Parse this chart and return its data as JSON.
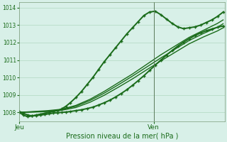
{
  "xlabel": "Pression niveau de la mer( hPa )",
  "bg_color": "#d8f0e8",
  "grid_color": "#b0d8c0",
  "line_color": "#1a6b1a",
  "ylim": [
    1007.5,
    1014.3
  ],
  "yticks": [
    1008,
    1009,
    1010,
    1011,
    1012,
    1013,
    1014
  ],
  "xlim": [
    0.0,
    1.45
  ],
  "xtick_positions": [
    0.0,
    0.95
  ],
  "xtick_labels": [
    "Jeu",
    "Ven"
  ],
  "ven_line_x": 0.95,
  "lines": [
    {
      "x": [
        0.0,
        0.03,
        0.06,
        0.09,
        0.12,
        0.15,
        0.18,
        0.21,
        0.24,
        0.27,
        0.3,
        0.33,
        0.36,
        0.4,
        0.44,
        0.48,
        0.52,
        0.56,
        0.6,
        0.64,
        0.68,
        0.72,
        0.76,
        0.8,
        0.84,
        0.88,
        0.92,
        0.96,
        1.0,
        1.04,
        1.08,
        1.12,
        1.16,
        1.2,
        1.24,
        1.28,
        1.32,
        1.36,
        1.4,
        1.44
      ],
      "y": [
        1008.0,
        1007.85,
        1007.75,
        1007.8,
        1007.85,
        1007.9,
        1007.95,
        1008.0,
        1008.05,
        1008.1,
        1008.2,
        1008.35,
        1008.55,
        1008.85,
        1009.2,
        1009.6,
        1010.0,
        1010.45,
        1010.9,
        1011.3,
        1011.7,
        1012.1,
        1012.5,
        1012.85,
        1013.2,
        1013.55,
        1013.75,
        1013.8,
        1013.6,
        1013.35,
        1013.1,
        1012.9,
        1012.8,
        1012.85,
        1012.9,
        1013.0,
        1013.15,
        1013.3,
        1013.5,
        1013.75
      ],
      "marker": true,
      "lw": 1.4
    },
    {
      "x": [
        0.0,
        0.1,
        0.2,
        0.3,
        0.4,
        0.5,
        0.6,
        0.7,
        0.8,
        0.9,
        1.0,
        1.1,
        1.2,
        1.3,
        1.4,
        1.44
      ],
      "y": [
        1008.0,
        1008.05,
        1008.1,
        1008.18,
        1008.4,
        1008.75,
        1009.2,
        1009.7,
        1010.2,
        1010.75,
        1011.3,
        1011.8,
        1012.3,
        1012.7,
        1013.1,
        1013.3
      ],
      "marker": false,
      "lw": 1.0
    },
    {
      "x": [
        0.0,
        0.1,
        0.2,
        0.3,
        0.4,
        0.5,
        0.6,
        0.7,
        0.8,
        0.9,
        1.0,
        1.1,
        1.2,
        1.3,
        1.4,
        1.44
      ],
      "y": [
        1008.0,
        1008.03,
        1008.07,
        1008.15,
        1008.35,
        1008.68,
        1009.1,
        1009.58,
        1010.08,
        1010.6,
        1011.12,
        1011.62,
        1012.12,
        1012.52,
        1012.88,
        1013.08
      ],
      "marker": false,
      "lw": 1.0
    },
    {
      "x": [
        0.0,
        0.1,
        0.2,
        0.3,
        0.4,
        0.5,
        0.6,
        0.7,
        0.8,
        0.9,
        1.0,
        1.1,
        1.2,
        1.3,
        1.4,
        1.44
      ],
      "y": [
        1008.0,
        1008.02,
        1008.05,
        1008.12,
        1008.28,
        1008.58,
        1008.98,
        1009.44,
        1009.92,
        1010.44,
        1010.95,
        1011.44,
        1011.93,
        1012.32,
        1012.67,
        1012.85
      ],
      "marker": false,
      "lw": 1.0
    },
    {
      "x": [
        0.0,
        0.03,
        0.06,
        0.09,
        0.12,
        0.15,
        0.18,
        0.21,
        0.24,
        0.27,
        0.3,
        0.33,
        0.36,
        0.4,
        0.44,
        0.48,
        0.52,
        0.56,
        0.6,
        0.64,
        0.68,
        0.72,
        0.76,
        0.8,
        0.84,
        0.88,
        0.92,
        0.96,
        1.0,
        1.04,
        1.08,
        1.12,
        1.16,
        1.2,
        1.24,
        1.28,
        1.32,
        1.36,
        1.4,
        1.44
      ],
      "y": [
        1008.05,
        1007.95,
        1007.85,
        1007.8,
        1007.82,
        1007.85,
        1007.88,
        1007.92,
        1007.96,
        1007.98,
        1008.0,
        1008.02,
        1008.05,
        1008.1,
        1008.15,
        1008.22,
        1008.3,
        1008.42,
        1008.55,
        1008.7,
        1008.88,
        1009.08,
        1009.3,
        1009.55,
        1009.82,
        1010.1,
        1010.4,
        1010.7,
        1011.0,
        1011.28,
        1011.55,
        1011.8,
        1012.02,
        1012.22,
        1012.4,
        1012.55,
        1012.68,
        1012.78,
        1012.88,
        1012.95
      ],
      "marker": true,
      "lw": 1.4
    }
  ]
}
